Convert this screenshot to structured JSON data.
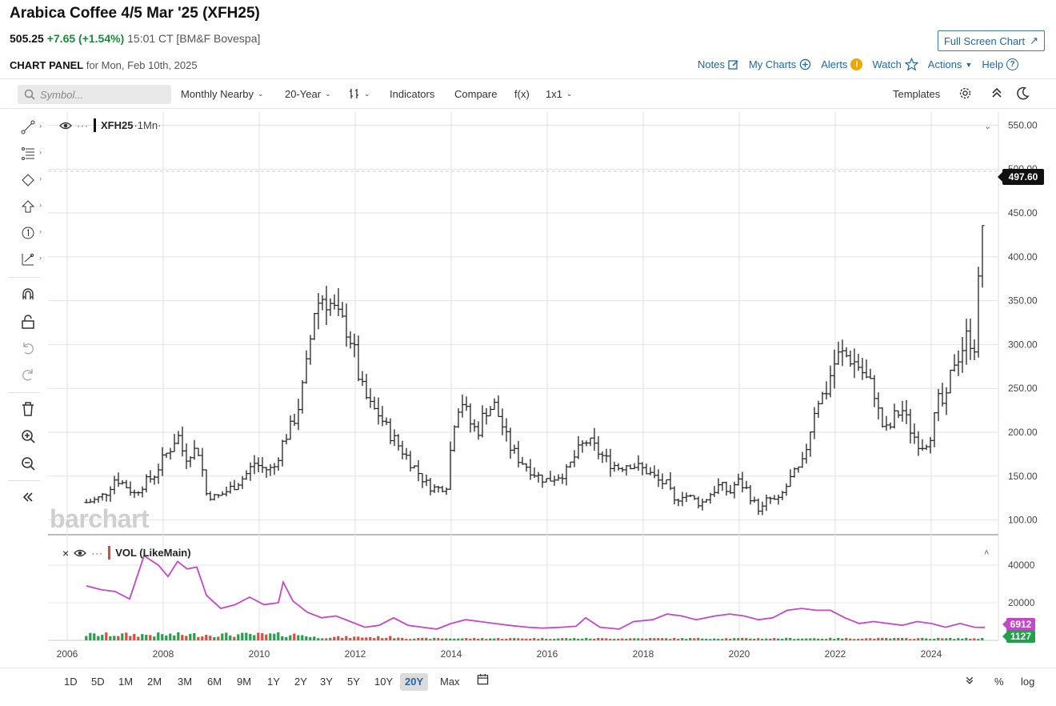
{
  "header": {
    "title": "Arabica Coffee 4/5 Mar '25 (XFH25)",
    "last": "505.25",
    "change": "+7.65 (+1.54%)",
    "time_exchange": "15:01 CT [BM&F Bovespa]",
    "fullscreen_label": "Full Screen Chart"
  },
  "panel": {
    "label_bold": "CHART PANEL",
    "label_rest": "for Mon, Feb 10th, 2025"
  },
  "top_links": {
    "notes": "Notes",
    "my_charts": "My Charts",
    "alerts": "Alerts",
    "alerts_badge": "!",
    "watch": "Watch",
    "actions": "Actions",
    "help": "Help",
    "help_badge": "?"
  },
  "toolbar": {
    "search_placeholder": "Symbol...",
    "aggregation": "Monthly Nearby",
    "range": "20-Year",
    "indicators": "Indicators",
    "compare": "Compare",
    "fx": "f(x)",
    "layout": "1x1",
    "templates": "Templates"
  },
  "legend": {
    "main_symbol": "XFH25",
    "main_interval": "·1Mn·",
    "vol_label": "VOL (LikeMain)",
    "dots": "···"
  },
  "watermark": "barchart",
  "tags": {
    "price": "497.60",
    "vol_avg": "6912",
    "vol_last": "1127"
  },
  "periods": [
    "1D",
    "5D",
    "1M",
    "2M",
    "3M",
    "6M",
    "9M",
    "1Y",
    "2Y",
    "3Y",
    "5Y",
    "10Y",
    "20Y",
    "Max"
  ],
  "active_period": "20Y",
  "bottom_right": {
    "percent": "%",
    "log": "log"
  },
  "colors": {
    "accent": "#2266aa",
    "up": "#1a8a3a",
    "vol_line": "#c447c8",
    "vol_up": "#22a04a",
    "vol_down": "#e04a3a"
  },
  "chart_data": [
    {
      "type": "ohlc",
      "series": [
        {
          "name": "XFH25"
        }
      ],
      "x_ticks": [
        "2006",
        "2008",
        "2010",
        "2012",
        "2014",
        "2016",
        "2018",
        "2020",
        "2022",
        "2024"
      ],
      "y_ticks": [
        "100.00",
        "150.00",
        "200.00",
        "250.00",
        "300.00",
        "350.00",
        "400.00",
        "450.00",
        "500.00",
        "550.00"
      ],
      "ylim": [
        85,
        565
      ],
      "xlim": [
        2005.6,
        2025.4
      ],
      "points": [
        [
          2006.4,
          120
        ],
        [
          2006.6,
          123
        ],
        [
          2006.8,
          130
        ],
        [
          2007.0,
          148
        ],
        [
          2007.2,
          140
        ],
        [
          2007.4,
          130
        ],
        [
          2007.6,
          142
        ],
        [
          2007.8,
          150
        ],
        [
          2008.0,
          170
        ],
        [
          2008.15,
          182
        ],
        [
          2008.3,
          198
        ],
        [
          2008.45,
          170
        ],
        [
          2008.6,
          180
        ],
        [
          2008.75,
          178
        ],
        [
          2008.9,
          130
        ],
        [
          2009.1,
          125
        ],
        [
          2009.3,
          132
        ],
        [
          2009.5,
          140
        ],
        [
          2009.7,
          150
        ],
        [
          2009.9,
          165
        ],
        [
          2010.1,
          158
        ],
        [
          2010.3,
          158
        ],
        [
          2010.5,
          190
        ],
        [
          2010.7,
          210
        ],
        [
          2010.85,
          235
        ],
        [
          2011.0,
          280
        ],
        [
          2011.15,
          340
        ],
        [
          2011.3,
          355
        ],
        [
          2011.5,
          345
        ],
        [
          2011.65,
          330
        ],
        [
          2011.8,
          320
        ],
        [
          2011.95,
          300
        ],
        [
          2012.1,
          255
        ],
        [
          2012.3,
          230
        ],
        [
          2012.5,
          220
        ],
        [
          2012.7,
          200
        ],
        [
          2012.9,
          185
        ],
        [
          2013.1,
          170
        ],
        [
          2013.3,
          155
        ],
        [
          2013.5,
          140
        ],
        [
          2013.7,
          135
        ],
        [
          2013.9,
          140
        ],
        [
          2014.05,
          210
        ],
        [
          2014.2,
          240
        ],
        [
          2014.4,
          210
        ],
        [
          2014.55,
          200
        ],
        [
          2014.7,
          225
        ],
        [
          2014.9,
          230
        ],
        [
          2015.05,
          210
        ],
        [
          2015.2,
          185
        ],
        [
          2015.4,
          170
        ],
        [
          2015.6,
          160
        ],
        [
          2015.8,
          150
        ],
        [
          2016.0,
          145
        ],
        [
          2016.2,
          150
        ],
        [
          2016.4,
          155
        ],
        [
          2016.6,
          175
        ],
        [
          2016.8,
          190
        ],
        [
          2016.95,
          185
        ],
        [
          2017.1,
          175
        ],
        [
          2017.3,
          165
        ],
        [
          2017.5,
          160
        ],
        [
          2017.7,
          165
        ],
        [
          2017.9,
          160
        ],
        [
          2018.1,
          155
        ],
        [
          2018.3,
          145
        ],
        [
          2018.5,
          140
        ],
        [
          2018.65,
          120
        ],
        [
          2018.8,
          130
        ],
        [
          2019.0,
          125
        ],
        [
          2019.2,
          118
        ],
        [
          2019.4,
          130
        ],
        [
          2019.6,
          140
        ],
        [
          2019.8,
          130
        ],
        [
          2019.95,
          145
        ],
        [
          2020.15,
          135
        ],
        [
          2020.3,
          120
        ],
        [
          2020.45,
          110
        ],
        [
          2020.6,
          125
        ],
        [
          2020.8,
          120
        ],
        [
          2020.95,
          135
        ],
        [
          2021.1,
          150
        ],
        [
          2021.3,
          160
        ],
        [
          2021.45,
          195
        ],
        [
          2021.6,
          235
        ],
        [
          2021.8,
          245
        ],
        [
          2021.95,
          275
        ],
        [
          2022.1,
          290
        ],
        [
          2022.3,
          285
        ],
        [
          2022.5,
          275
        ],
        [
          2022.65,
          260
        ],
        [
          2022.8,
          250
        ],
        [
          2022.95,
          210
        ],
        [
          2023.1,
          200
        ],
        [
          2023.25,
          220
        ],
        [
          2023.4,
          225
        ],
        [
          2023.55,
          205
        ],
        [
          2023.7,
          190
        ],
        [
          2023.85,
          185
        ],
        [
          2024.0,
          200
        ],
        [
          2024.15,
          235
        ],
        [
          2024.3,
          230
        ],
        [
          2024.45,
          280
        ],
        [
          2024.6,
          290
        ],
        [
          2024.75,
          310
        ],
        [
          2024.9,
          300
        ],
        [
          2025.0,
          380
        ],
        [
          2025.05,
          420
        ],
        [
          2025.12,
          497.6
        ]
      ]
    },
    {
      "type": "line",
      "series": [
        {
          "name": "VOL (LikeMain)"
        }
      ],
      "y_ticks": [
        "20000",
        "40000"
      ],
      "ylim": [
        0,
        46000
      ],
      "points": [
        [
          2006.4,
          29000
        ],
        [
          2006.7,
          27000
        ],
        [
          2007.0,
          26000
        ],
        [
          2007.3,
          22000
        ],
        [
          2007.6,
          45000
        ],
        [
          2007.9,
          40000
        ],
        [
          2008.1,
          34000
        ],
        [
          2008.3,
          42000
        ],
        [
          2008.5,
          38000
        ],
        [
          2008.7,
          39000
        ],
        [
          2008.9,
          24000
        ],
        [
          2009.2,
          17000
        ],
        [
          2009.5,
          19000
        ],
        [
          2009.8,
          23000
        ],
        [
          2010.1,
          19000
        ],
        [
          2010.4,
          20000
        ],
        [
          2010.5,
          31000
        ],
        [
          2010.7,
          21000
        ],
        [
          2011.0,
          15000
        ],
        [
          2011.3,
          12000
        ],
        [
          2011.6,
          13000
        ],
        [
          2011.9,
          10000
        ],
        [
          2012.2,
          7000
        ],
        [
          2012.5,
          8000
        ],
        [
          2012.8,
          12000
        ],
        [
          2013.1,
          8000
        ],
        [
          2013.4,
          7000
        ],
        [
          2013.7,
          6000
        ],
        [
          2014.0,
          9000
        ],
        [
          2014.3,
          11000
        ],
        [
          2014.6,
          10000
        ],
        [
          2014.9,
          9000
        ],
        [
          2015.2,
          8000
        ],
        [
          2015.6,
          7000
        ],
        [
          2015.9,
          6500
        ],
        [
          2016.3,
          7000
        ],
        [
          2016.6,
          7500
        ],
        [
          2016.8,
          12000
        ],
        [
          2017.1,
          7000
        ],
        [
          2017.5,
          6000
        ],
        [
          2017.8,
          10000
        ],
        [
          2018.2,
          11000
        ],
        [
          2018.5,
          14000
        ],
        [
          2018.8,
          13000
        ],
        [
          2019.1,
          11000
        ],
        [
          2019.5,
          13000
        ],
        [
          2019.8,
          14000
        ],
        [
          2020.1,
          13000
        ],
        [
          2020.4,
          11000
        ],
        [
          2020.7,
          12000
        ],
        [
          2021.0,
          16000
        ],
        [
          2021.3,
          17000
        ],
        [
          2021.6,
          16000
        ],
        [
          2021.9,
          16000
        ],
        [
          2022.2,
          12000
        ],
        [
          2022.5,
          9000
        ],
        [
          2022.8,
          10000
        ],
        [
          2023.1,
          9000
        ],
        [
          2023.4,
          8000
        ],
        [
          2023.7,
          10000
        ],
        [
          2024.0,
          9000
        ],
        [
          2024.3,
          7000
        ],
        [
          2024.6,
          9000
        ],
        [
          2024.9,
          7000
        ],
        [
          2025.12,
          6912
        ]
      ]
    }
  ]
}
